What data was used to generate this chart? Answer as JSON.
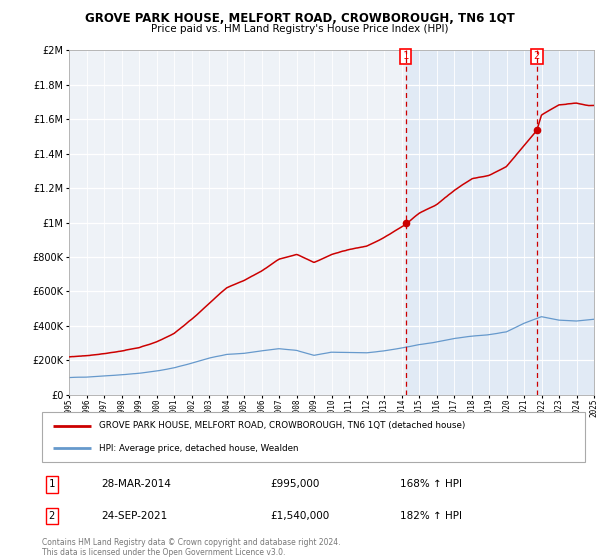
{
  "title": "GROVE PARK HOUSE, MELFORT ROAD, CROWBOROUGH, TN6 1QT",
  "subtitle": "Price paid vs. HM Land Registry's House Price Index (HPI)",
  "legend_line1": "GROVE PARK HOUSE, MELFORT ROAD, CROWBOROUGH, TN6 1QT (detached house)",
  "legend_line2": "HPI: Average price, detached house, Wealden",
  "sale1_date": "28-MAR-2014",
  "sale1_price": "£995,000",
  "sale1_hpi": "168% ↑ HPI",
  "sale2_date": "24-SEP-2021",
  "sale2_price": "£1,540,000",
  "sale2_hpi": "182% ↑ HPI",
  "footer": "Contains HM Land Registry data © Crown copyright and database right 2024.\nThis data is licensed under the Open Government Licence v3.0.",
  "ylim": [
    0,
    2000000
  ],
  "yticks": [
    0,
    200000,
    400000,
    600000,
    800000,
    1000000,
    1200000,
    1400000,
    1600000,
    1800000,
    2000000
  ],
  "x_start_year": 1995,
  "x_end_year": 2025,
  "hpi_color": "#6699cc",
  "price_color": "#cc0000",
  "dashed_line_color": "#cc0000",
  "background_color": "#ffffff",
  "plot_bg_color": "#eef2f7",
  "shaded_region_color": "#dce8f5",
  "sale1_year": 2014.23,
  "sale2_year": 2021.73,
  "sale1_price_val": 995000,
  "sale2_price_val": 1540000,
  "hpi_points": [
    [
      1995,
      100000
    ],
    [
      1996,
      103000
    ],
    [
      1997,
      111000
    ],
    [
      1998,
      118000
    ],
    [
      1999,
      126000
    ],
    [
      2000,
      140000
    ],
    [
      2001,
      158000
    ],
    [
      2002,
      185000
    ],
    [
      2003,
      215000
    ],
    [
      2004,
      235000
    ],
    [
      2005,
      242000
    ],
    [
      2006,
      255000
    ],
    [
      2007,
      268000
    ],
    [
      2008,
      258000
    ],
    [
      2009,
      230000
    ],
    [
      2010,
      248000
    ],
    [
      2011,
      245000
    ],
    [
      2012,
      243000
    ],
    [
      2013,
      255000
    ],
    [
      2014,
      270000
    ],
    [
      2015,
      290000
    ],
    [
      2016,
      305000
    ],
    [
      2017,
      325000
    ],
    [
      2018,
      340000
    ],
    [
      2019,
      348000
    ],
    [
      2020,
      365000
    ],
    [
      2021,
      415000
    ],
    [
      2022,
      455000
    ],
    [
      2023,
      435000
    ],
    [
      2024,
      430000
    ],
    [
      2025,
      440000
    ]
  ],
  "price_points": [
    [
      1995,
      220000
    ],
    [
      1996,
      228000
    ],
    [
      1997,
      242000
    ],
    [
      1998,
      258000
    ],
    [
      1999,
      275000
    ],
    [
      2000,
      308000
    ],
    [
      2001,
      358000
    ],
    [
      2002,
      440000
    ],
    [
      2003,
      530000
    ],
    [
      2004,
      620000
    ],
    [
      2005,
      665000
    ],
    [
      2006,
      720000
    ],
    [
      2007,
      790000
    ],
    [
      2008,
      820000
    ],
    [
      2009,
      775000
    ],
    [
      2010,
      820000
    ],
    [
      2011,
      850000
    ],
    [
      2012,
      870000
    ],
    [
      2013,
      920000
    ],
    [
      2014.23,
      995000
    ],
    [
      2015,
      1060000
    ],
    [
      2016,
      1110000
    ],
    [
      2017,
      1190000
    ],
    [
      2018,
      1260000
    ],
    [
      2019,
      1280000
    ],
    [
      2020,
      1330000
    ],
    [
      2021.73,
      1540000
    ],
    [
      2022,
      1630000
    ],
    [
      2023,
      1690000
    ],
    [
      2024,
      1700000
    ],
    [
      2024.7,
      1685000
    ]
  ]
}
